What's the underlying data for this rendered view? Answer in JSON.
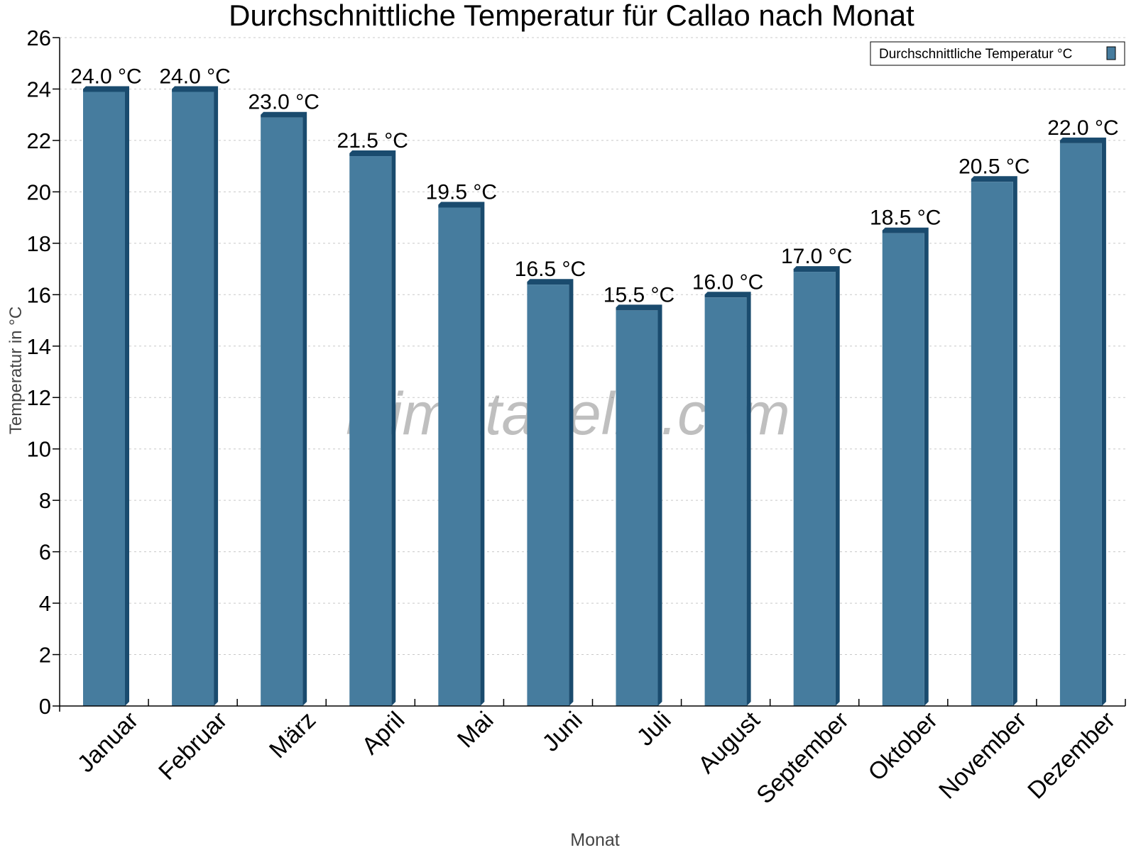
{
  "chart_data": {
    "type": "bar",
    "title": "Durchschnittliche Temperatur für Callao nach Monat",
    "xlabel": "Monat",
    "ylabel": "Temperatur in °C",
    "ylim": [
      0,
      26
    ],
    "yticks": [
      0,
      2,
      4,
      6,
      8,
      10,
      12,
      14,
      16,
      18,
      20,
      22,
      24,
      26
    ],
    "grid": "horizontal dashed",
    "legend_position": "top-right",
    "categories": [
      "Januar",
      "Februar",
      "März",
      "April",
      "Mai",
      "Juni",
      "Juli",
      "August",
      "September",
      "Oktober",
      "November",
      "Dezember"
    ],
    "series": [
      {
        "name": "Durchschnittliche Temperatur °C",
        "values": [
          24.0,
          24.0,
          23.0,
          21.5,
          19.5,
          16.5,
          15.5,
          16.0,
          17.0,
          18.5,
          20.5,
          22.0
        ],
        "labels": [
          "24.0 °C",
          "24.0 °C",
          "23.0 °C",
          "21.5 °C",
          "19.5 °C",
          "16.5 °C",
          "15.5 °C",
          "16.0 °C",
          "17.0 °C",
          "18.5 °C",
          "20.5 °C",
          "22.0 °C"
        ],
        "color": "#467c9e",
        "side_color": "#1a4b6e"
      }
    ],
    "watermark": "klimatabelle.com"
  }
}
